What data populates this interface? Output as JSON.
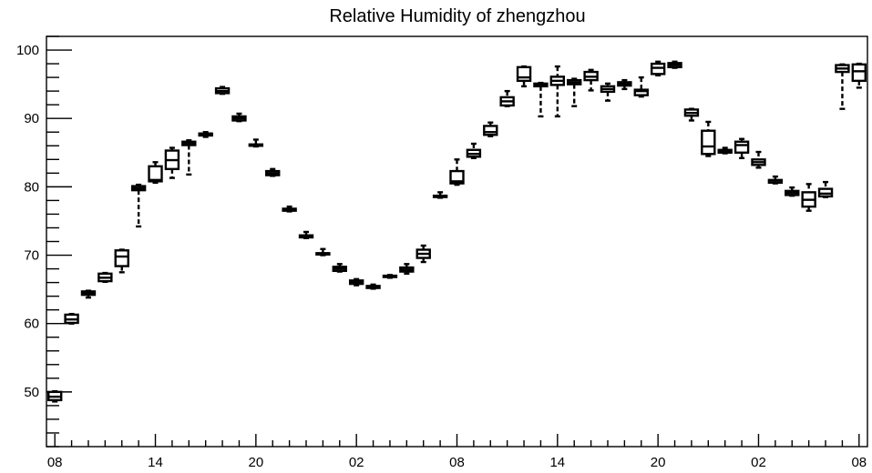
{
  "chart_data": {
    "type": "box",
    "title": "Relative Humidity of zhengzhou",
    "xlabel": "",
    "ylabel": "",
    "ylim": [
      42,
      102
    ],
    "yticks": [
      50,
      60,
      70,
      80,
      90,
      100
    ],
    "x_tick_labels": [
      "08",
      "14",
      "20",
      "02",
      "08",
      "14",
      "20",
      "02",
      "08"
    ],
    "x_tick_hours": [
      0,
      6,
      12,
      18,
      24,
      30,
      36,
      42,
      48
    ],
    "x_range_hours": [
      -0.5,
      48.5
    ],
    "grid": false,
    "legend": "none",
    "boxes": [
      {
        "hour": 0,
        "min": 48.6,
        "q1": 48.8,
        "median": 49.3,
        "q3": 50.0,
        "max": 50.1
      },
      {
        "hour": 1,
        "min": 60.0,
        "q1": 60.1,
        "median": 60.6,
        "q3": 61.3,
        "max": 61.4
      },
      {
        "hour": 2,
        "min": 63.8,
        "q1": 64.2,
        "median": 64.5,
        "q3": 64.7,
        "max": 64.8
      },
      {
        "hour": 3,
        "min": 66.1,
        "q1": 66.2,
        "median": 66.7,
        "q3": 67.3,
        "max": 67.4
      },
      {
        "hour": 4,
        "min": 67.5,
        "q1": 68.4,
        "median": 69.8,
        "q3": 70.7,
        "max": 70.8
      },
      {
        "hour": 5,
        "min": 74.2,
        "q1": 79.5,
        "median": 79.8,
        "q3": 80.1,
        "max": 80.3
      },
      {
        "hour": 6,
        "min": 80.6,
        "q1": 80.8,
        "median": 81.0,
        "q3": 83.0,
        "max": 83.6
      },
      {
        "hour": 7,
        "min": 81.3,
        "q1": 82.6,
        "median": 83.9,
        "q3": 85.3,
        "max": 85.7
      },
      {
        "hour": 8,
        "min": 81.8,
        "q1": 86.1,
        "median": 86.4,
        "q3": 86.6,
        "max": 86.8
      },
      {
        "hour": 9,
        "min": 87.3,
        "q1": 87.5,
        "median": 87.7,
        "q3": 87.8,
        "max": 88.0
      },
      {
        "hour": 10,
        "min": 93.6,
        "q1": 93.7,
        "median": 94.0,
        "q3": 94.4,
        "max": 94.6
      },
      {
        "hour": 11,
        "min": 89.6,
        "q1": 89.7,
        "median": 90.0,
        "q3": 90.3,
        "max": 90.7
      },
      {
        "hour": 12,
        "min": 85.9,
        "q1": 86.0,
        "median": 86.1,
        "q3": 86.2,
        "max": 86.9
      },
      {
        "hour": 13,
        "min": 81.6,
        "q1": 81.7,
        "median": 82.0,
        "q3": 82.3,
        "max": 82.6
      },
      {
        "hour": 14,
        "min": 76.4,
        "q1": 76.5,
        "median": 76.7,
        "q3": 76.8,
        "max": 77.1
      },
      {
        "hour": 15,
        "min": 72.5,
        "q1": 72.6,
        "median": 72.8,
        "q3": 72.9,
        "max": 73.4
      },
      {
        "hour": 16,
        "min": 70.0,
        "q1": 70.1,
        "median": 70.2,
        "q3": 70.3,
        "max": 70.9
      },
      {
        "hour": 17,
        "min": 67.6,
        "q1": 67.7,
        "median": 68.0,
        "q3": 68.3,
        "max": 68.7
      },
      {
        "hour": 18,
        "min": 65.6,
        "q1": 65.8,
        "median": 66.0,
        "q3": 66.3,
        "max": 66.5
      },
      {
        "hour": 19,
        "min": 65.1,
        "q1": 65.2,
        "median": 65.4,
        "q3": 65.5,
        "max": 65.7
      },
      {
        "hour": 20,
        "min": 66.7,
        "q1": 66.8,
        "median": 66.9,
        "q3": 67.0,
        "max": 67.1
      },
      {
        "hour": 21,
        "min": 67.3,
        "q1": 67.6,
        "median": 67.9,
        "q3": 68.2,
        "max": 68.7
      },
      {
        "hour": 22,
        "min": 69.0,
        "q1": 69.6,
        "median": 70.2,
        "q3": 70.8,
        "max": 71.4
      },
      {
        "hour": 23,
        "min": 78.4,
        "q1": 78.5,
        "median": 78.6,
        "q3": 78.7,
        "max": 79.2
      },
      {
        "hour": 24,
        "min": 80.3,
        "q1": 80.5,
        "median": 80.8,
        "q3": 82.3,
        "max": 84.0
      },
      {
        "hour": 25,
        "min": 84.2,
        "q1": 84.4,
        "median": 84.8,
        "q3": 85.4,
        "max": 86.3
      },
      {
        "hour": 26,
        "min": 87.4,
        "q1": 87.6,
        "median": 88.0,
        "q3": 88.9,
        "max": 89.4
      },
      {
        "hour": 27,
        "min": 91.8,
        "q1": 91.9,
        "median": 92.5,
        "q3": 93.1,
        "max": 94.0
      },
      {
        "hour": 28,
        "min": 94.7,
        "q1": 95.5,
        "median": 96.0,
        "q3": 97.5,
        "max": 97.6
      },
      {
        "hour": 29,
        "min": 90.3,
        "q1": 94.7,
        "median": 94.9,
        "q3": 95.1,
        "max": 95.2
      },
      {
        "hour": 30,
        "min": 90.3,
        "q1": 94.9,
        "median": 95.5,
        "q3": 96.1,
        "max": 97.6
      },
      {
        "hour": 31,
        "min": 91.8,
        "q1": 95.0,
        "median": 95.3,
        "q3": 95.6,
        "max": 95.8
      },
      {
        "hour": 32,
        "min": 94.1,
        "q1": 95.6,
        "median": 96.1,
        "q3": 96.8,
        "max": 97.1
      },
      {
        "hour": 33,
        "min": 92.6,
        "q1": 93.9,
        "median": 94.3,
        "q3": 94.7,
        "max": 95.1
      },
      {
        "hour": 34,
        "min": 94.3,
        "q1": 94.8,
        "median": 95.1,
        "q3": 95.3,
        "max": 95.6
      },
      {
        "hour": 35,
        "min": 93.2,
        "q1": 93.4,
        "median": 94.0,
        "q3": 94.2,
        "max": 96.0
      },
      {
        "hour": 36,
        "min": 96.3,
        "q1": 96.5,
        "median": 97.4,
        "q3": 98.0,
        "max": 98.3
      },
      {
        "hour": 37,
        "min": 97.4,
        "q1": 97.5,
        "median": 97.8,
        "q3": 98.1,
        "max": 98.3
      },
      {
        "hour": 38,
        "min": 89.7,
        "q1": 90.4,
        "median": 90.8,
        "q3": 91.3,
        "max": 91.4
      },
      {
        "hour": 39,
        "min": 84.5,
        "q1": 84.8,
        "median": 85.9,
        "q3": 88.2,
        "max": 89.5
      },
      {
        "hour": 40,
        "min": 84.9,
        "q1": 85.0,
        "median": 85.2,
        "q3": 85.4,
        "max": 85.7
      },
      {
        "hour": 41,
        "min": 84.2,
        "q1": 85.0,
        "median": 86.1,
        "q3": 86.6,
        "max": 87.0
      },
      {
        "hour": 42,
        "min": 82.8,
        "q1": 83.2,
        "median": 83.6,
        "q3": 84.0,
        "max": 85.1
      },
      {
        "hour": 43,
        "min": 80.5,
        "q1": 80.6,
        "median": 80.9,
        "q3": 81.0,
        "max": 81.5
      },
      {
        "hour": 44,
        "min": 78.7,
        "q1": 78.8,
        "median": 79.1,
        "q3": 79.4,
        "max": 79.9
      },
      {
        "hour": 45,
        "min": 76.5,
        "q1": 77.1,
        "median": 78.1,
        "q3": 79.2,
        "max": 80.4
      },
      {
        "hour": 46,
        "min": 78.5,
        "q1": 78.6,
        "median": 79.0,
        "q3": 79.7,
        "max": 80.7
      },
      {
        "hour": 47,
        "min": 91.4,
        "q1": 96.8,
        "median": 97.3,
        "q3": 97.8,
        "max": 97.9
      },
      {
        "hour": 48,
        "min": 94.5,
        "q1": 95.5,
        "median": 96.9,
        "q3": 97.9,
        "max": 98.0
      }
    ]
  }
}
